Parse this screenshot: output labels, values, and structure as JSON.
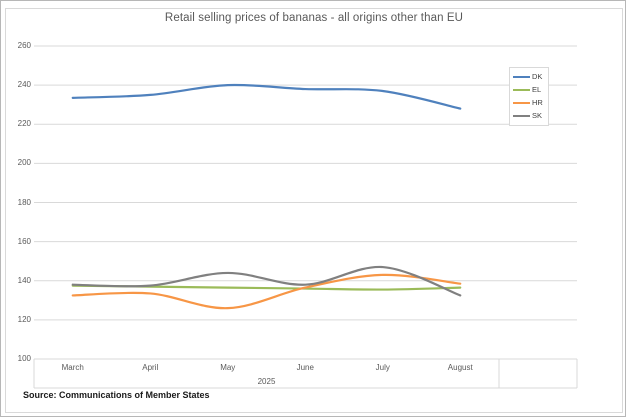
{
  "chart": {
    "title": "Retail selling prices of bananas - all origins other than EU",
    "title_color": "#595959",
    "source_note": "Source: Communications of Member States",
    "frame_color": "#d9d9d9",
    "grid_color": "#d9d9d9",
    "axis_text_color": "#595959"
  },
  "chart_data": {
    "type": "line",
    "title": "Retail selling prices of bananas - all origins other than EU",
    "categories": [
      "March",
      "April",
      "May",
      "June",
      "July",
      "August"
    ],
    "x_axis_group_label": "2025",
    "xlabel": "",
    "ylabel": "",
    "ylim": [
      100,
      260
    ],
    "ytick_step": 20,
    "ytick_labels": [
      "100",
      "120",
      "140",
      "160",
      "180",
      "200",
      "220",
      "240",
      "260"
    ],
    "grid": true,
    "smooth_lines": true,
    "legend_position": "top-right-inside",
    "legend_entries": [
      "DK",
      "EL",
      "HR",
      "SK"
    ],
    "series": [
      {
        "name": "DK",
        "color": "#4F81BD",
        "values": [
          233.5,
          235,
          240,
          238,
          237,
          228
        ]
      },
      {
        "name": "EL",
        "color": "#9BBB59",
        "values": [
          137.5,
          137,
          136.5,
          136,
          135.5,
          136.5
        ]
      },
      {
        "name": "HR",
        "color": "#F79646",
        "values": [
          132.5,
          133.5,
          126,
          136.5,
          143,
          138.5
        ]
      },
      {
        "name": "SK",
        "color": "#808080",
        "values": [
          138,
          137.5,
          144,
          138,
          147,
          132.5
        ]
      }
    ],
    "source_note": "Source: Communications of Member States"
  }
}
